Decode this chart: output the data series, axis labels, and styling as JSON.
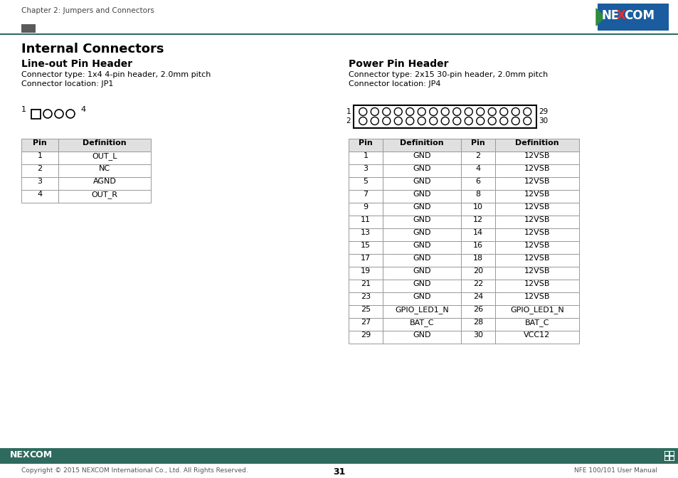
{
  "page_title": "Chapter 2: Jumpers and Connectors",
  "page_number": "31",
  "footer_left": "Copyright © 2015 NEXCOM International Co., Ltd. All Rights Reserved.",
  "footer_right": "NFE 100/101 User Manual",
  "main_title": "Internal Connectors",
  "section1_title": "Line-out Pin Header",
  "section1_type": "Connector type: 1x4 4-pin header, 2.0mm pitch",
  "section1_loc": "Connector location: JP1",
  "section2_title": "Power Pin Header",
  "section2_type": "Connector type: 2x15 30-pin header, 2.0mm pitch",
  "section2_loc": "Connector location: JP4",
  "table1_headers": [
    "Pin",
    "Definition"
  ],
  "table1_data": [
    [
      "1",
      "OUT_L"
    ],
    [
      "2",
      "NC"
    ],
    [
      "3",
      "AGND"
    ],
    [
      "4",
      "OUT_R"
    ]
  ],
  "table2_headers": [
    "Pin",
    "Definition",
    "Pin",
    "Definition"
  ],
  "table2_data": [
    [
      "1",
      "GND",
      "2",
      "12VSB"
    ],
    [
      "3",
      "GND",
      "4",
      "12VSB"
    ],
    [
      "5",
      "GND",
      "6",
      "12VSB"
    ],
    [
      "7",
      "GND",
      "8",
      "12VSB"
    ],
    [
      "9",
      "GND",
      "10",
      "12VSB"
    ],
    [
      "11",
      "GND",
      "12",
      "12VSB"
    ],
    [
      "13",
      "GND",
      "14",
      "12VSB"
    ],
    [
      "15",
      "GND",
      "16",
      "12VSB"
    ],
    [
      "17",
      "GND",
      "18",
      "12VSB"
    ],
    [
      "19",
      "GND",
      "20",
      "12VSB"
    ],
    [
      "21",
      "GND",
      "22",
      "12VSB"
    ],
    [
      "23",
      "GND",
      "24",
      "12VSB"
    ],
    [
      "25",
      "GPIO_LED1_N",
      "26",
      "GPIO_LED1_N"
    ],
    [
      "27",
      "BAT_C",
      "28",
      "BAT_C"
    ],
    [
      "29",
      "GND",
      "30",
      "VCC12"
    ]
  ],
  "header_bg": "#e0e0e0",
  "page_bg": "#ffffff",
  "text_color": "#000000",
  "teal_color": "#2e6b5e",
  "dark_sq_color": "#6b3030",
  "nexcom_blue": "#1a5c9e",
  "nexcom_green": "#2e8b3e",
  "nexcom_red": "#e03030",
  "border_color": "#999999",
  "footer_text_color": "#555555"
}
